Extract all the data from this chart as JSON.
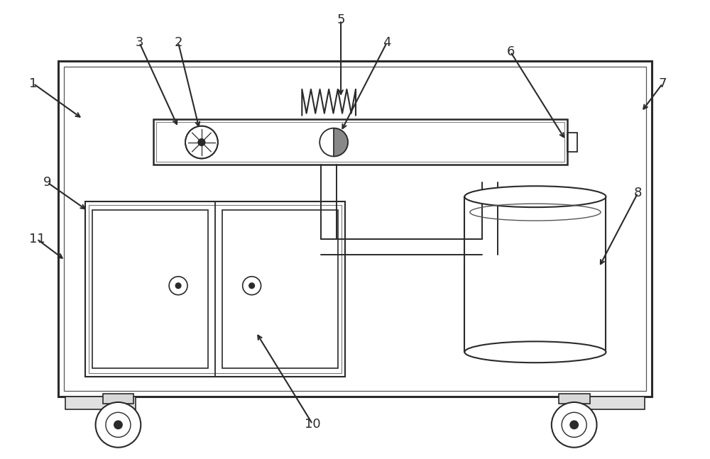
{
  "bg_color": "#ffffff",
  "line_color": "#2a2a2a",
  "label_color": "#1a1a1a",
  "fig_width": 10.0,
  "fig_height": 6.47
}
